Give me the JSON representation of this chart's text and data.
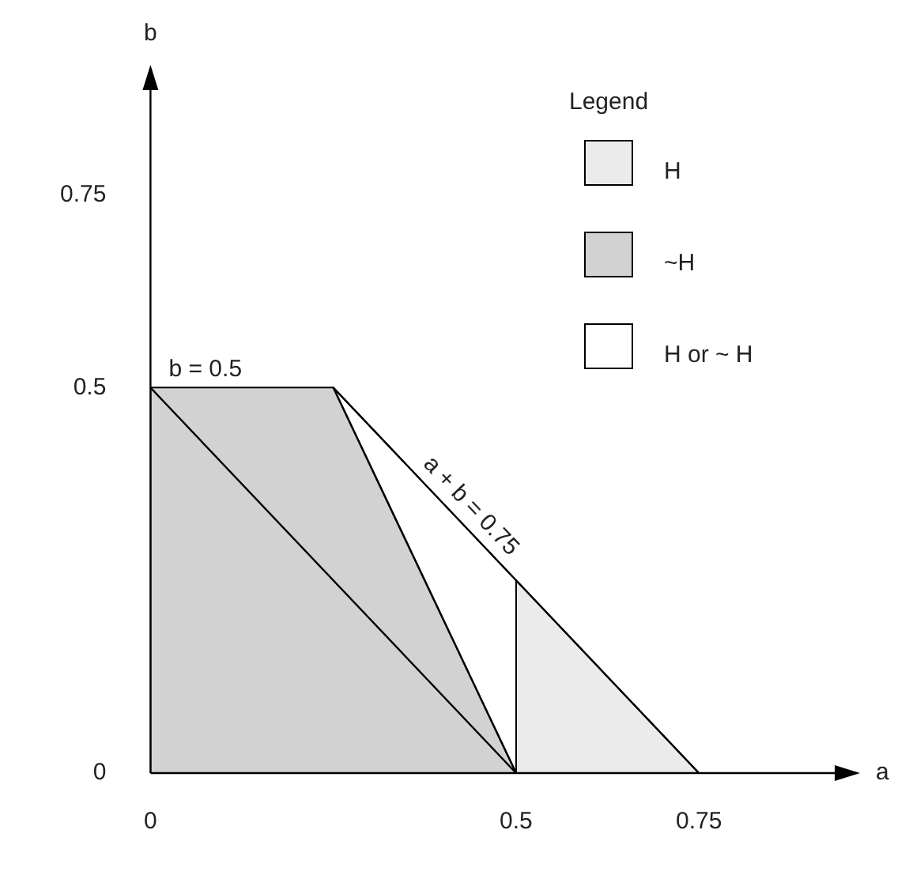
{
  "chart_data": {
    "type": "area",
    "xlabel": "a",
    "ylabel": "b",
    "legend_title": "Legend",
    "legend": "top right",
    "grid": false,
    "marker": "none",
    "xlim": [
      0,
      0.94
    ],
    "ylim": [
      0,
      0.89
    ],
    "xticks": [
      0,
      0.5,
      0.75
    ],
    "yticks": [
      0,
      0.5,
      0.75
    ],
    "series": [
      {
        "type": "line",
        "color": "#000000",
        "x": [
          0,
          0.5,
          0.25,
          0.75
        ],
        "values": [
          0.5,
          0,
          0.5,
          0
        ]
      },
      {
        "name": "H",
        "color": "#ebebeb",
        "x": [
          0.5,
          0.5,
          0.75
        ],
        "values": [
          0,
          0.25,
          0
        ]
      },
      {
        "name": "~H",
        "color": "#d2d2d2",
        "x": [
          0,
          0,
          0.25,
          0.5
        ],
        "values": [
          0,
          0.5,
          0.5,
          0
        ]
      },
      {
        "name": "H or ~ H",
        "color": "#ffffff",
        "x": [
          0.25,
          0.5,
          0.5
        ],
        "values": [
          0.5,
          0.25,
          0
        ]
      }
    ],
    "annotations": [
      {
        "text": "b = 0.5",
        "x": 0.075,
        "y": 0.5
      },
      {
        "text": "a + b = 0.75",
        "x": 0.42,
        "y": 0.33
      }
    ]
  }
}
